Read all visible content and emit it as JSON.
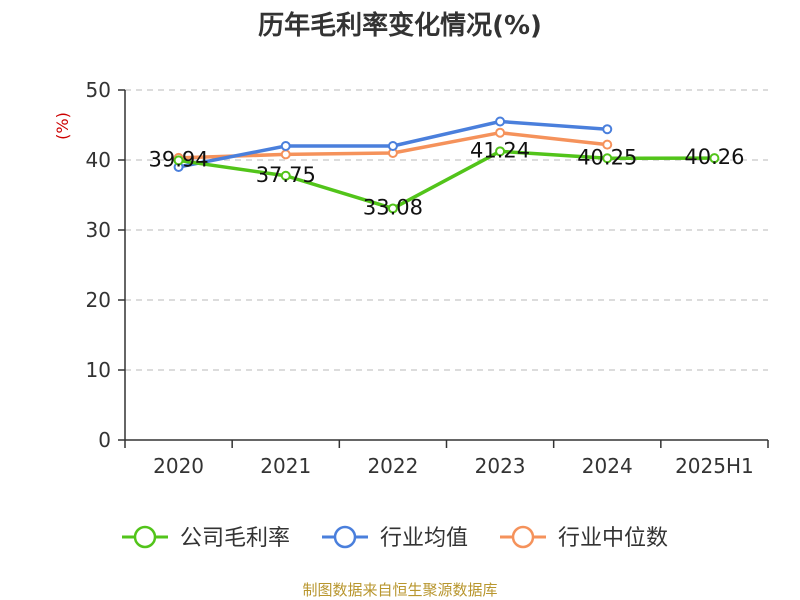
{
  "chart_data": {
    "type": "line",
    "title": "历年毛利率变化情况(%)",
    "ylabel": "(%)",
    "xlabel": "",
    "categories": [
      "2020",
      "2021",
      "2022",
      "2023",
      "2024",
      "2025H1"
    ],
    "ylim": [
      0,
      50
    ],
    "yticks": [
      0,
      10,
      20,
      30,
      40,
      50
    ],
    "grid": true,
    "legend_position": "bottom",
    "series": [
      {
        "name": "公司毛利率",
        "color": "#52c41a",
        "values": [
          39.94,
          37.75,
          33.08,
          41.24,
          40.25,
          40.26
        ],
        "labels": [
          "39.94",
          "37.75",
          "33.08",
          "41.24",
          "40.25",
          "40.26"
        ]
      },
      {
        "name": "行业均值",
        "color": "#4a7fdc",
        "values": [
          39.0,
          42.0,
          42.0,
          45.5,
          44.4,
          null
        ]
      },
      {
        "name": "行业中位数",
        "color": "#f5925b",
        "values": [
          40.3,
          40.8,
          41.0,
          43.9,
          42.2,
          null
        ]
      }
    ]
  },
  "footer": {
    "source": "制图数据来自恒生聚源数据库"
  }
}
